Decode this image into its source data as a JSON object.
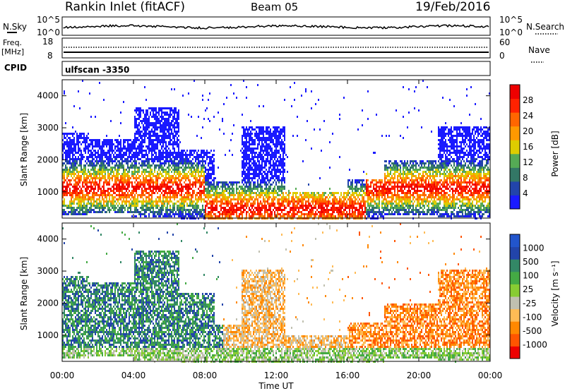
{
  "header": {
    "station": "Rankin Inlet (fitACF)",
    "beam": "Beam 05",
    "date": "19/Feb/2016"
  },
  "status_panels": {
    "nsky_label": "N.Sky",
    "nsearch_label": "N.Search",
    "noise_ticks": [
      "10^5",
      "10^0"
    ],
    "freq_label_1": "Freq.",
    "freq_label_2": "[MHz]",
    "freq_ticks": [
      "18",
      "8"
    ],
    "nave_label": "Nave",
    "nave_ticks": [
      "60",
      "0"
    ],
    "cpid_label": "CPID",
    "cpid_value": "ulfscan -3350"
  },
  "colors": {
    "power": [
      "#1a1aff",
      "#2244aa",
      "#337766",
      "#55aa55",
      "#ddcc00",
      "#ff9900",
      "#ff6600",
      "#ff2200",
      "#ee0000"
    ],
    "velocity": [
      "#ee0000",
      "#ff5500",
      "#ff8800",
      "#ffbb55",
      "#c0c0b0",
      "#88cc33",
      "#44aa44",
      "#338866",
      "#2244aa",
      "#2255cc"
    ]
  },
  "chart_data": [
    {
      "type": "heatmap",
      "name": "Power",
      "ylabel": "Slant Range [km]",
      "xlabel": "",
      "y_ticks": [
        1000,
        2000,
        3000,
        4000
      ],
      "x_ticks": [
        "00:00",
        "04:00",
        "08:00",
        "12:00",
        "16:00",
        "20:00",
        "00:00"
      ],
      "ylim": [
        180,
        4500
      ],
      "xlim_hours": [
        0,
        24
      ],
      "colorbar_label": "Power [dB]",
      "colorbar_ticks": [
        "28",
        "24",
        "20",
        "16",
        "12",
        "8",
        "4"
      ],
      "colorbar_range": [
        0,
        32
      ]
    },
    {
      "type": "heatmap",
      "name": "Velocity",
      "ylabel": "Slant Range [km]",
      "xlabel": "Time UT",
      "y_ticks": [
        1000,
        2000,
        3000,
        4000
      ],
      "x_ticks": [
        "00:00",
        "04:00",
        "08:00",
        "12:00",
        "16:00",
        "20:00",
        "00:00"
      ],
      "ylim": [
        180,
        4500
      ],
      "xlim_hours": [
        0,
        24
      ],
      "colorbar_label": "Velocity [m s⁻¹]",
      "colorbar_ticks": [
        "1000",
        "500",
        "100",
        "25",
        "-25",
        "-100",
        "-500",
        "-1000"
      ]
    }
  ]
}
